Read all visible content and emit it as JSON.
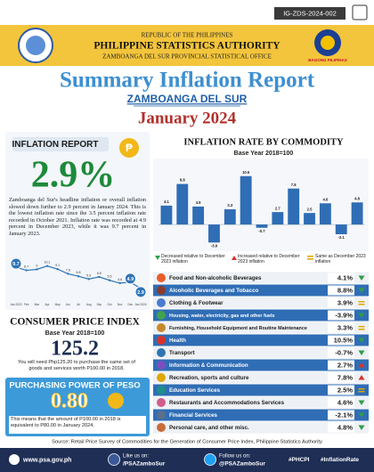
{
  "id_code": "IG-ZDS-2024-002",
  "header": {
    "republic": "REPUBLIC OF THE PHILIPPINES",
    "agency": "PHILIPPINE STATISTICS AUTHORITY",
    "office": "ZAMBOANGA DEL SUR PROVINCIAL STATISTICAL OFFICE",
    "logo_right": "BAGONG PILIPINAS"
  },
  "title": "Summary Inflation Report",
  "province": "ZAMBOANGA DEL SUR",
  "period": "January 2024",
  "inflation": {
    "label": "INFLATION REPORT",
    "value": "2.9%",
    "text": "Zamboanga del Sur's headline inflation or overall inflation slowed down further to 2.9 percent in January 2024. This is the lowest inflation rate since the 3.5 percent inflation rate recorded in October 2021. Inflation rate was recorded at 4.9 percent in December 2023, while it was 9.7 percent in January 2023.",
    "trend_chart": {
      "type": "line",
      "categories": [
        "Jan 2023",
        "Feb",
        "Mar",
        "Apr",
        "May",
        "Jun",
        "Jul",
        "Aug",
        "Sep",
        "Oct",
        "Nov",
        "Dec",
        "Jan 2024"
      ],
      "values": [
        9.7,
        8.7,
        9.0,
        10.1,
        9.1,
        7.6,
        6.8,
        5.9,
        6.6,
        5.5,
        4.6,
        4.9,
        2.9
      ],
      "color": "#2e75b6",
      "ylim": [
        0,
        12
      ]
    }
  },
  "commodity_chart": {
    "type": "bar",
    "title": "INFLATION RATE BY COMMODITY",
    "subtitle": "Base Year 2018=100",
    "values": [
      4.1,
      8.8,
      3.9,
      -3.9,
      3.3,
      10.5,
      -0.7,
      2.7,
      7.8,
      2.5,
      4.6,
      -2.1,
      4.8
    ],
    "color": "#2f6db5",
    "ylim": [
      -5,
      12
    ]
  },
  "legend": {
    "decreased": "Decreased relative to December 2023 inflation",
    "increased": "Increased relative to December 2023 inflation",
    "same": "Same as December 2023 inflation"
  },
  "commodities": [
    {
      "name": "Food and Non-alcoholic Beverages",
      "label": "4.1%",
      "trend": "down"
    },
    {
      "name": "Alcoholic Beverages and Tobacco",
      "label": "8.8%",
      "trend": "down"
    },
    {
      "name": "Clothing & Footwear",
      "label": "3.9%",
      "trend": "same"
    },
    {
      "name": "Housing, water, electricity, gas and other fuels",
      "label": "-3.9%",
      "trend": "down"
    },
    {
      "name": "Furnishing, Household Equipment and Routine Maintenance",
      "label": "3.3%",
      "trend": "same"
    },
    {
      "name": "Health",
      "label": "10.5%",
      "trend": "down"
    },
    {
      "name": "Transport",
      "label": "-0.7%",
      "trend": "down"
    },
    {
      "name": "Information & Communication",
      "label": "2.7%",
      "trend": "up"
    },
    {
      "name": "Recreation, sports and culture",
      "label": "7.8%",
      "trend": "up"
    },
    {
      "name": "Education Services",
      "label": "2.5%",
      "trend": "same"
    },
    {
      "name": "Restaurants and Accommodations Services",
      "label": "4.6%",
      "trend": "down"
    },
    {
      "name": "Financial Services",
      "label": "-2.1%",
      "trend": "down"
    },
    {
      "name": "Personal care, and other misc.",
      "label": "4.8%",
      "trend": "down"
    }
  ],
  "cpi": {
    "title": "CONSUMER PRICE INDEX",
    "base": "Base Year 2018=100",
    "value": "125.2",
    "note": "You will need Php125.20 to purchase the same set of goods and services worth P100.00 in 2018."
  },
  "ppp": {
    "title": "PURCHASING POWER OF PESO",
    "value": "0.80",
    "note": "This means that the amount of P100.00 in 2018 is equivalent to P80.00 in January 2024."
  },
  "source": "Source: Retail Price Survey of Commodities for the Generation of Consumer Price Index, Philippine Statistics Authority",
  "footer": {
    "website": "www.psa.gov.ph",
    "like": "Like us on:",
    "facebook": "/PSAZamboSur",
    "follow": "Follow us on:",
    "twitter": "@PSAZamboSur",
    "tag1": "#PHCPI",
    "tag2": "#InflationRate"
  }
}
